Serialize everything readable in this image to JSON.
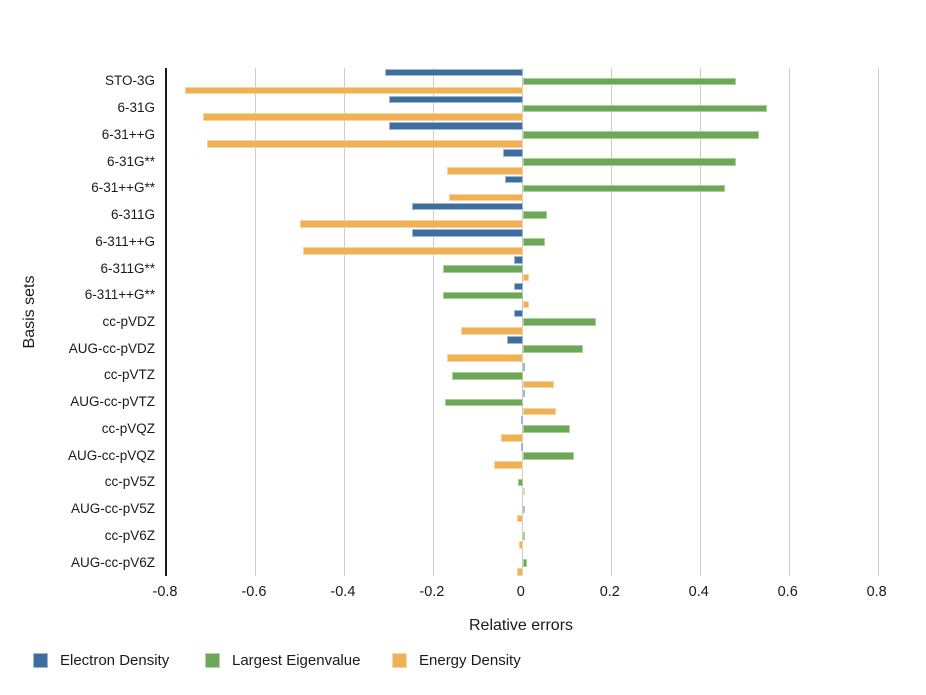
{
  "chart_data": {
    "type": "bar",
    "orientation": "horizontal",
    "title": "",
    "xlabel": "Relative errors",
    "ylabel": "Basis sets",
    "xlim": [
      -0.8,
      0.83
    ],
    "xticks": [
      -0.8,
      -0.6,
      -0.4,
      -0.2,
      0,
      0.2,
      0.4,
      0.6,
      0.8
    ],
    "xtick_labels": [
      "-0.8",
      "-0.6",
      "-0.4",
      "-0.2",
      "0",
      "0.2",
      "0.4",
      "0.6",
      "0.8"
    ],
    "grid": true,
    "legend_position": "bottom-left",
    "categories": [
      "STO-3G",
      "6-31G",
      "6-31++G",
      "6-31G**",
      "6-31++G**",
      "6-311G",
      "6-311++G",
      "6-311G**",
      "6-311++G**",
      "cc-pVDZ",
      "AUG-cc-pVDZ",
      "cc-pVTZ",
      "AUG-cc-pVTZ",
      "cc-pVQZ",
      "AUG-cc-pVQZ",
      "cc-pV5Z",
      "AUG-cc-pV5Z",
      "cc-pV6Z",
      "AUG-cc-pV6Z"
    ],
    "series": [
      {
        "name": "Electron Density",
        "color": "#3D6E9E",
        "edge_color": "#9FB9D4",
        "values": [
          -0.31,
          -0.3,
          -0.3,
          -0.045,
          -0.04,
          -0.25,
          -0.25,
          -0.02,
          -0.02,
          -0.02,
          -0.035,
          0.005,
          0.005,
          -0.005,
          -0.005,
          0,
          0,
          0,
          0
        ]
      },
      {
        "name": "Largest Eigenvalue",
        "color": "#6DA858",
        "edge_color": "#ABCF97",
        "values": [
          0.48,
          0.55,
          0.53,
          0.48,
          0.455,
          0.055,
          0.05,
          -0.18,
          -0.18,
          0.165,
          0.135,
          -0.16,
          -0.175,
          0.105,
          0.115,
          -0.01,
          0.002,
          0.004,
          0.01
        ]
      },
      {
        "name": "Energy Density",
        "color": "#F0B054",
        "edge_color": "#F6D3A0",
        "values": [
          -0.76,
          -0.72,
          -0.71,
          -0.17,
          -0.165,
          -0.5,
          -0.495,
          0.015,
          0.015,
          -0.14,
          -0.17,
          0.07,
          0.075,
          -0.05,
          -0.065,
          0.002,
          -0.012,
          -0.008,
          -0.012
        ]
      }
    ],
    "axis_color": "#1a1a1a",
    "gridline_color": "#cccccc"
  }
}
